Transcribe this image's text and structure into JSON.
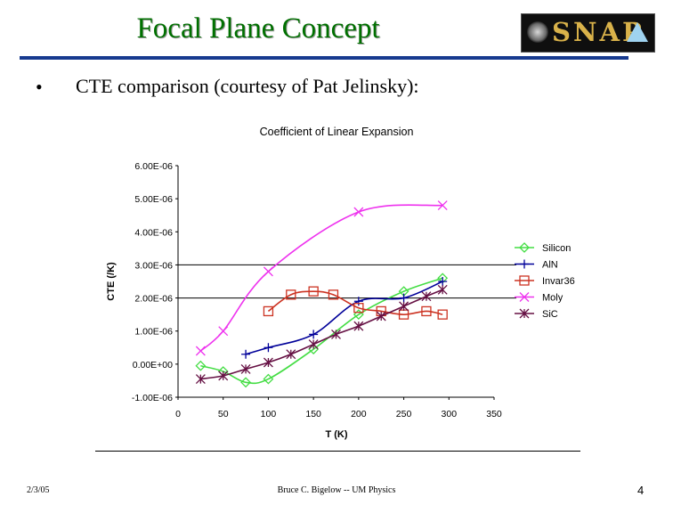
{
  "slide": {
    "title": "Focal Plane Concept",
    "bullet_marker": "•",
    "bullet": "CTE comparison (courtesy of Pat Jelinsky):",
    "logo_text": "SNAP",
    "footer_date": "2/3/05",
    "footer_author": "Bruce C. Bigelow -- UM Physics",
    "page_number": "4"
  },
  "colors": {
    "title": "#007000",
    "rule": "#173a8f",
    "Silicon": "#44dd44",
    "AlN": "#000099",
    "Invar36": "#cc3322",
    "Moly": "#ee33ee",
    "SiC": "#661144"
  },
  "chart_data": {
    "type": "line",
    "title": "Coefficient of Linear Expansion",
    "xlabel": "T (K)",
    "ylabel": "CTE (/K)",
    "xlim": [
      0,
      350
    ],
    "ylim": [
      -1e-06,
      6e-06
    ],
    "x_ticks": [
      0,
      50,
      100,
      150,
      200,
      250,
      300,
      350
    ],
    "x_tick_labels": [
      "0",
      "50",
      "100",
      "150",
      "200",
      "250",
      "300",
      "350"
    ],
    "y_ticks": [
      -1e-06,
      0,
      1e-06,
      2e-06,
      3e-06,
      4e-06,
      5e-06,
      6e-06
    ],
    "y_tick_labels": [
      "-1.00E-06",
      "0.00E+00",
      "1.00E-06",
      "2.00E-06",
      "3.00E-06",
      "4.00E-06",
      "5.00E-06",
      "6.00E-06"
    ],
    "gridlines_y": [
      2e-06,
      3e-06
    ],
    "legend_position": "right",
    "series": [
      {
        "name": "Silicon",
        "marker": "diamond",
        "x": [
          25,
          50,
          75,
          100,
          150,
          200,
          250,
          293
        ],
        "y": [
          -5e-08,
          -2.2e-07,
          -5.5e-07,
          -4.5e-07,
          4.5e-07,
          1.5e-06,
          2.2e-06,
          2.6e-06
        ]
      },
      {
        "name": "AlN",
        "marker": "plus",
        "x": [
          75,
          100,
          150,
          200,
          250,
          293
        ],
        "y": [
          3e-07,
          5e-07,
          9e-07,
          1.9e-06,
          2e-06,
          2.5e-06
        ]
      },
      {
        "name": "Invar36",
        "marker": "square",
        "x": [
          100,
          125,
          150,
          172,
          200,
          225,
          250,
          275,
          293
        ],
        "y": [
          1.6e-06,
          2.1e-06,
          2.2e-06,
          2.1e-06,
          1.7e-06,
          1.6e-06,
          1.5e-06,
          1.6e-06,
          1.5e-06
        ]
      },
      {
        "name": "Moly",
        "marker": "x",
        "x": [
          25,
          50,
          100,
          200,
          293
        ],
        "y": [
          4e-07,
          1e-06,
          2.8e-06,
          4.6e-06,
          4.8e-06
        ]
      },
      {
        "name": "SiC",
        "marker": "asterisk",
        "x": [
          25,
          50,
          75,
          100,
          125,
          150,
          175,
          200,
          225,
          250,
          275,
          293
        ],
        "y": [
          -4.5e-07,
          -3.5e-07,
          -1.5e-07,
          5e-08,
          3e-07,
          6e-07,
          9e-07,
          1.15e-06,
          1.45e-06,
          1.75e-06,
          2.05e-06,
          2.25e-06
        ]
      }
    ]
  }
}
